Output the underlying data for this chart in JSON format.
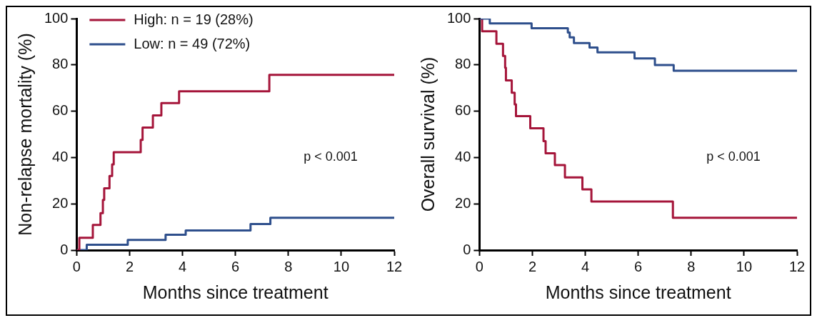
{
  "chart_data": [
    {
      "type": "step",
      "xlabel": "Months since treatment",
      "ylabel": "Non-relapse mortality (%)",
      "xlim": [
        0,
        12
      ],
      "xticks": [
        0,
        2,
        4,
        6,
        8,
        10,
        12
      ],
      "ylim": [
        0,
        100
      ],
      "yticks": [
        0,
        20,
        40,
        60,
        80,
        100
      ],
      "legend": "top left",
      "annotations": [
        "p < 0.001"
      ],
      "series": [
        {
          "name": "High: n = 19 (28%)",
          "color": "#a5153a",
          "x": [
            0,
            0.1,
            0.61,
            0.9,
            0.99,
            1.04,
            1.24,
            1.34,
            1.4,
            2.42,
            2.49,
            2.88,
            3.2,
            3.87,
            7.28,
            12
          ],
          "values": [
            0,
            5.3,
            10.9,
            16,
            21.7,
            26.7,
            32,
            37,
            42.3,
            47.6,
            52.9,
            58.2,
            63.5,
            68.6,
            75.7,
            75.7
          ]
        },
        {
          "name": "Low: n = 49 (72%)",
          "color": "#2e4f8c",
          "x": [
            0,
            0.38,
            1.93,
            3.36,
            4.12,
            6.57,
            7.32,
            12
          ],
          "values": [
            0,
            2.3,
            4.4,
            6.6,
            8.5,
            11.3,
            14,
            14
          ]
        }
      ]
    },
    {
      "type": "step",
      "xlabel": "Months since treatment",
      "ylabel": "Overall survival (%)",
      "xlim": [
        0,
        12
      ],
      "xticks": [
        0,
        2,
        4,
        6,
        8,
        10,
        12
      ],
      "ylim": [
        0,
        100
      ],
      "yticks": [
        0,
        20,
        40,
        60,
        80,
        100
      ],
      "annotations": [
        "p < 0.001"
      ],
      "series": [
        {
          "color": "#2e4f8c",
          "x": [
            0,
            0.39,
            1.97,
            3.34,
            3.41,
            3.57,
            4.16,
            4.46,
            5.86,
            6.63,
            7.34,
            12
          ],
          "values": [
            100,
            97.9,
            95.8,
            94,
            91.9,
            89.4,
            87.5,
            85.4,
            82.8,
            79.9,
            77.5,
            77.5
          ]
        },
        {
          "color": "#a5153a",
          "x": [
            0,
            0.1,
            0.64,
            0.89,
            0.97,
            1.0,
            1.22,
            1.33,
            1.38,
            1.92,
            2.42,
            2.5,
            2.85,
            3.23,
            3.89,
            4.23,
            7.31,
            12
          ],
          "values": [
            100,
            94.5,
            89.1,
            83.9,
            78.8,
            73.3,
            68,
            63,
            57.9,
            52.6,
            47.1,
            41.8,
            36.7,
            31.4,
            26.2,
            21,
            14,
            14
          ]
        }
      ]
    }
  ]
}
